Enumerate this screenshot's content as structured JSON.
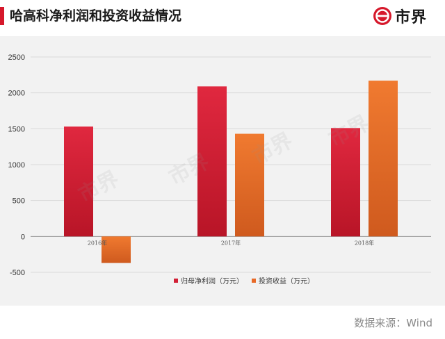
{
  "header": {
    "title": "哈高科净利润和投资收益情况",
    "logo_text": "市界"
  },
  "footer": {
    "source": "数据来源：Wind"
  },
  "watermark": "市界",
  "colors": {
    "accent": "#d6182b",
    "series_net_profit": "#d21f35",
    "series_investment": "#e86a28",
    "panel_bg": "#f2f2f2"
  },
  "chart_data": {
    "type": "bar",
    "title": "",
    "xlabel": "",
    "ylabel": "",
    "categories": [
      "2016年",
      "2017年",
      "2018年"
    ],
    "series": [
      {
        "name": "归母净利润（万元）",
        "values": [
          1530,
          2090,
          1510
        ]
      },
      {
        "name": "投资收益（万元）",
        "values": [
          -370,
          1430,
          2170
        ]
      }
    ],
    "ylim": [
      -500,
      2500
    ],
    "yticks": [
      -500,
      0,
      500,
      1000,
      1500,
      2000,
      2500
    ],
    "ytick_labels": [
      "-500",
      "0",
      "500",
      "1000",
      "1500",
      "2000",
      "2500"
    ],
    "grid": true,
    "legend_position": "bottom-center"
  }
}
